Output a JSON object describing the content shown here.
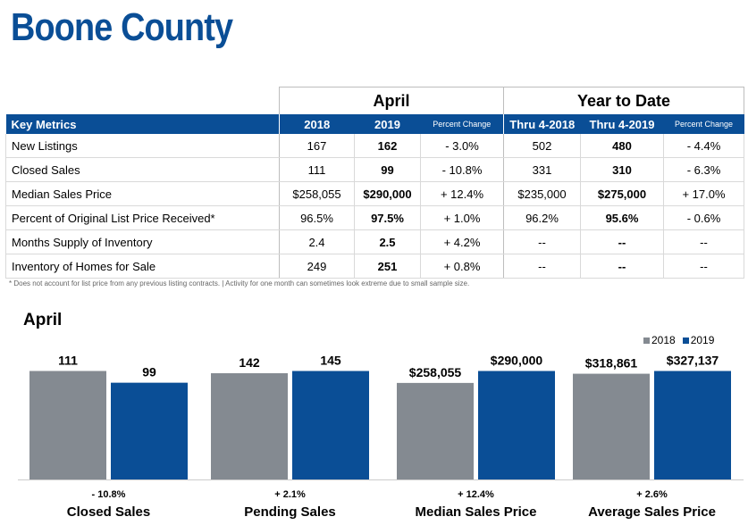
{
  "title": "Boone County",
  "table": {
    "group_april": "April",
    "group_ytd": "Year to Date",
    "headers": {
      "key_metrics": "Key Metrics",
      "y2018": "2018",
      "y2019": "2019",
      "pct_change": "Percent Change",
      "thru2018": "Thru 4-2018",
      "thru2019": "Thru 4-2019",
      "pct_change2": "Percent Change"
    },
    "rows": [
      {
        "label": "New Listings",
        "a2018": "167",
        "a2019": "162",
        "apc": "- 3.0%",
        "y2018": "502",
        "y2019": "480",
        "ypc": "- 4.4%"
      },
      {
        "label": "Closed Sales",
        "a2018": "111",
        "a2019": "99",
        "apc": "- 10.8%",
        "y2018": "331",
        "y2019": "310",
        "ypc": "- 6.3%"
      },
      {
        "label": "Median Sales Price",
        "a2018": "$258,055",
        "a2019": "$290,000",
        "apc": "+ 12.4%",
        "y2018": "$235,000",
        "y2019": "$275,000",
        "ypc": "+ 17.0%"
      },
      {
        "label": "Percent of Original List Price Received*",
        "a2018": "96.5%",
        "a2019": "97.5%",
        "apc": "+ 1.0%",
        "y2018": "96.2%",
        "y2019": "95.6%",
        "ypc": "- 0.6%"
      },
      {
        "label": "Months Supply of Inventory",
        "a2018": "2.4",
        "a2019": "2.5",
        "apc": "+ 4.2%",
        "y2018": "--",
        "y2019": "--",
        "ypc": "--"
      },
      {
        "label": "Inventory of Homes for Sale",
        "a2018": "249",
        "a2019": "251",
        "apc": "+ 0.8%",
        "y2018": "--",
        "y2019": "--",
        "ypc": "--"
      }
    ]
  },
  "footnote": "* Does not account for list price from any previous listing contracts.  |  Activity for one month can sometimes look extreme due to small sample size.",
  "chart_data": {
    "type": "bar",
    "title": "April",
    "series": [
      {
        "name": "2018",
        "color": "#848a91"
      },
      {
        "name": "2019",
        "color": "#0a4e96"
      }
    ],
    "groups": [
      {
        "category": "Closed Sales",
        "values": [
          111,
          99
        ],
        "labels": [
          "111",
          "99"
        ],
        "change": "- 10.8%"
      },
      {
        "category": "Pending Sales",
        "values": [
          142,
          145
        ],
        "labels": [
          "142",
          "145"
        ],
        "change": "+ 2.1%"
      },
      {
        "category": "Median Sales Price",
        "values": [
          258055,
          290000
        ],
        "labels": [
          "$258,055",
          "$290,000"
        ],
        "change": "+ 12.4%"
      },
      {
        "category": "Average Sales Price",
        "values": [
          318861,
          327137
        ],
        "labels": [
          "$318,861",
          "$327,137"
        ],
        "change": "+ 2.6%"
      }
    ],
    "legend_position": "top-right"
  }
}
